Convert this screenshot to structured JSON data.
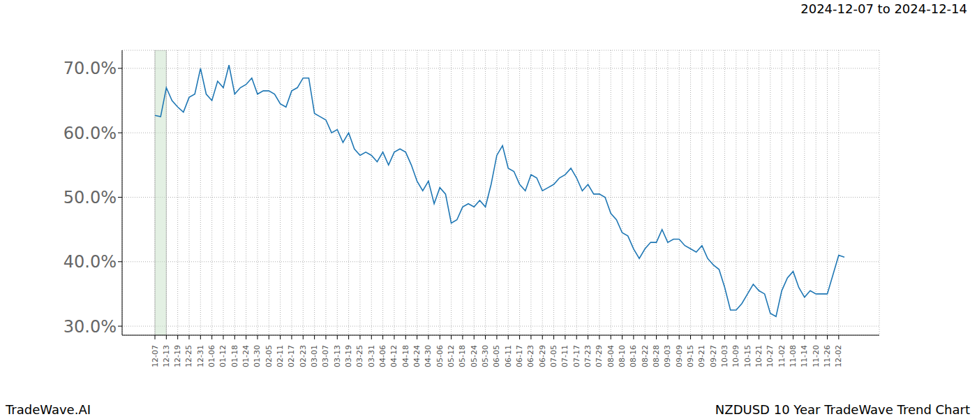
{
  "chart_data": {
    "type": "line",
    "title": "NZDUSD 10 Year TradeWave Trend Chart",
    "subtitle": "2024-12-07 to 2024-12-14",
    "annotations": [
      "TradeWave.AI"
    ],
    "categories": [
      "12-07",
      null,
      "12-13",
      null,
      "12-19",
      null,
      "12-25",
      null,
      "12-31",
      null,
      "01-06",
      null,
      "01-12",
      null,
      "01-18",
      null,
      "01-24",
      null,
      "01-30",
      null,
      "02-05",
      null,
      "02-11",
      null,
      "02-17",
      null,
      "02-23",
      null,
      "03-01",
      null,
      "03-07",
      null,
      "03-13",
      null,
      "03-19",
      null,
      "03-25",
      null,
      "03-31",
      null,
      "04-06",
      null,
      "04-12",
      null,
      "04-18",
      null,
      "04-24",
      null,
      "04-30",
      null,
      "05-06",
      null,
      "05-12",
      null,
      "05-18",
      null,
      "05-24",
      null,
      "05-30",
      null,
      "06-05",
      null,
      "06-11",
      null,
      "06-17",
      null,
      "06-23",
      null,
      "06-29",
      null,
      "07-05",
      null,
      "07-11",
      null,
      "07-17",
      null,
      "07-23",
      null,
      "07-29",
      null,
      "08-04",
      null,
      "08-10",
      null,
      "08-16",
      null,
      "08-22",
      null,
      "08-28",
      null,
      "09-03",
      null,
      "09-09",
      null,
      "09-15",
      null,
      "09-21",
      null,
      "09-27",
      null,
      "10-03",
      null,
      "10-09",
      null,
      "10-15",
      null,
      "10-21",
      null,
      "10-27",
      null,
      "11-02",
      null,
      "11-08",
      null,
      "11-14",
      null,
      "11-20",
      null,
      "11-26",
      null,
      "12-02",
      null
    ],
    "values": [
      62.7,
      62.5,
      67,
      65,
      64,
      63.2,
      65.5,
      66,
      70,
      66,
      65,
      68,
      67,
      70.5,
      66,
      67,
      67.5,
      68.5,
      66,
      66.5,
      66.5,
      66,
      64.5,
      64,
      66.5,
      67,
      68.5,
      68.5,
      63,
      62.5,
      62,
      60,
      60.5,
      58.5,
      60,
      57.5,
      56.5,
      57,
      56.5,
      55.5,
      57,
      55,
      57,
      57.5,
      57,
      55,
      52.5,
      51,
      52.5,
      49,
      51.5,
      50.5,
      46,
      46.5,
      48.5,
      49,
      48.5,
      49.5,
      48.5,
      52,
      56.5,
      58,
      54.5,
      54,
      52,
      51,
      53.5,
      53,
      51,
      51.5,
      52,
      53,
      53.5,
      54.5,
      53,
      51,
      52,
      50.5,
      50.5,
      50,
      47.5,
      46.5,
      44.5,
      44,
      42,
      40.5,
      42,
      43,
      43,
      45,
      43,
      43.5,
      43.5,
      42.5,
      42,
      41.5,
      42.5,
      40.5,
      39.5,
      38.8,
      36,
      32.5,
      32.5,
      33.5,
      35,
      36.5,
      35.5,
      35,
      32,
      31.5,
      35.5,
      37.5,
      38.5,
      36,
      34.5,
      35.5,
      35,
      35,
      35,
      38,
      41,
      40.7
    ],
    "color": "#1f77b4",
    "shaded_range": [
      "12-07",
      "12-13"
    ],
    "ylim": [
      28.6,
      72.8
    ],
    "yticks": [
      {
        "value": 30,
        "label": "30.0%"
      },
      {
        "value": 40,
        "label": "40.0%"
      },
      {
        "value": 50,
        "label": "50.0%"
      },
      {
        "value": 60,
        "label": "60.0%"
      },
      {
        "value": 70,
        "label": "70.0%"
      }
    ],
    "grid": true
  }
}
